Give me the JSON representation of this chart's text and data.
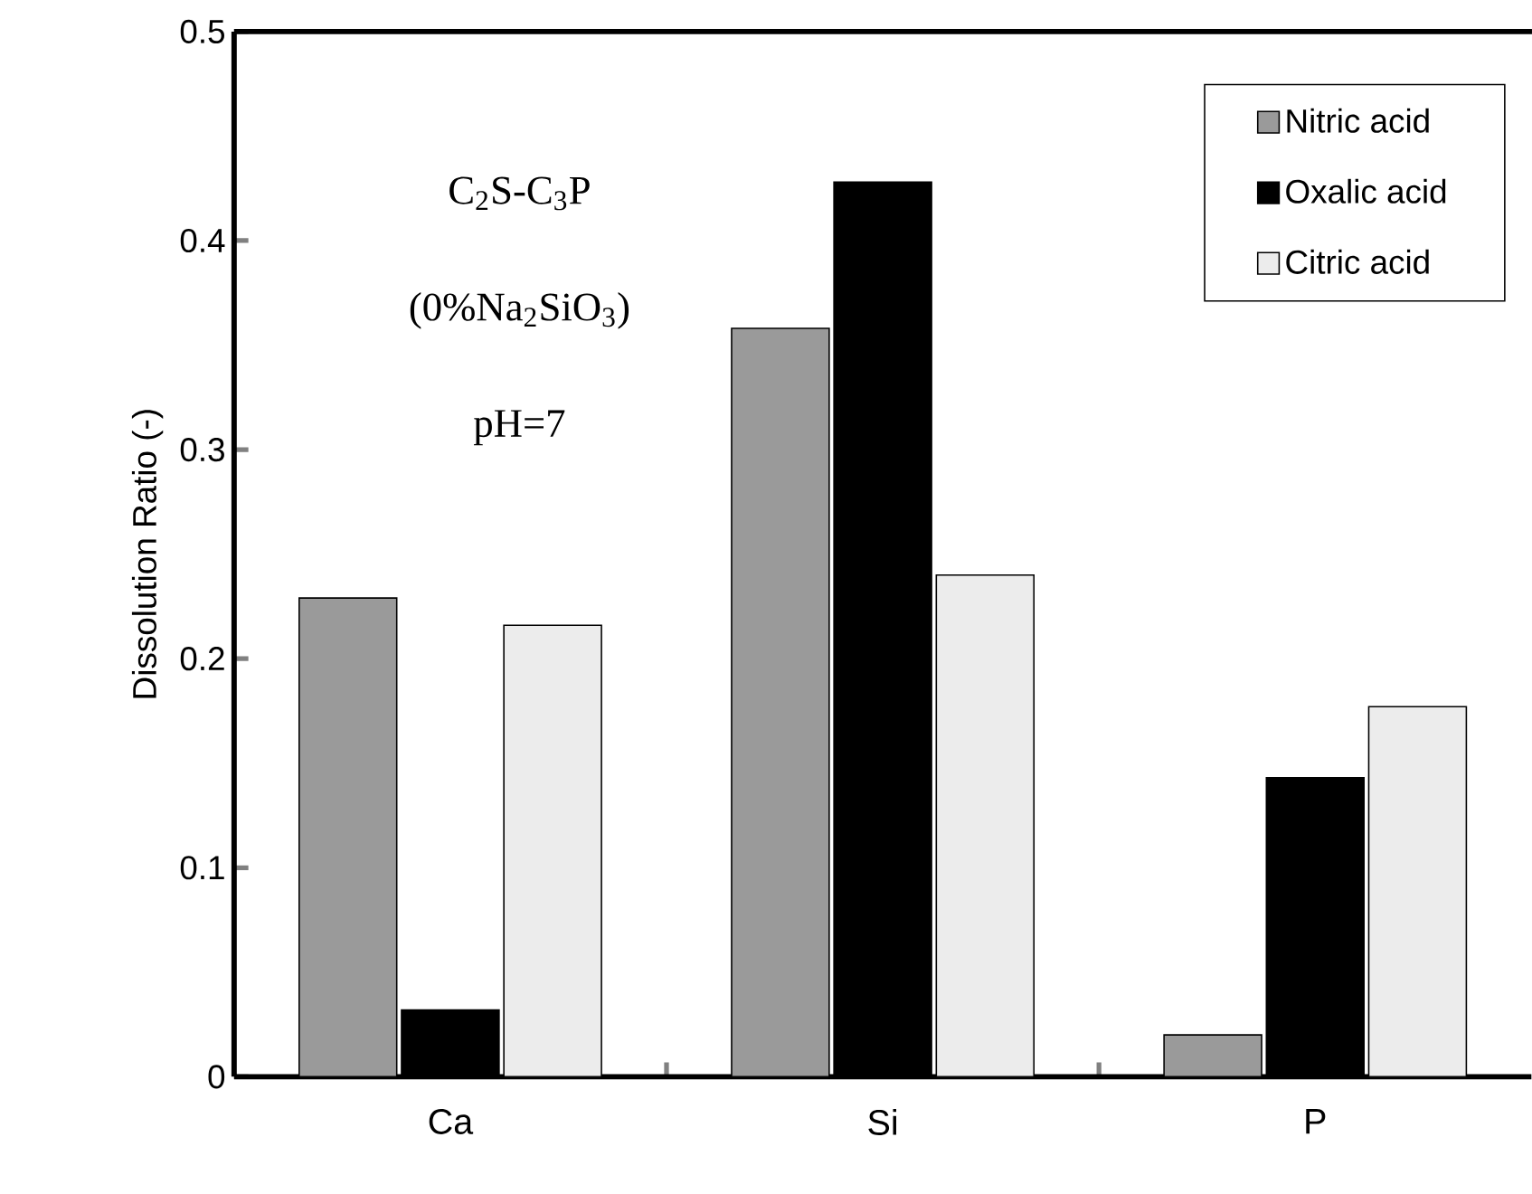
{
  "chart_data": {
    "type": "bar",
    "ylabel": "Dissolution Ratio (-)",
    "categories": [
      "Ca",
      "Si",
      "P"
    ],
    "series": [
      {
        "name": "Nitric acid",
        "color": "#9a9a9a",
        "values": [
          0.229,
          0.358,
          0.02
        ]
      },
      {
        "name": "Oxalic acid",
        "color": "#000000",
        "values": [
          0.032,
          0.428,
          0.143
        ]
      },
      {
        "name": "Citric acid",
        "color": "#ececec",
        "values": [
          0.216,
          0.24,
          0.177
        ]
      }
    ],
    "ylim": [
      0,
      0.5
    ],
    "yticks": [
      0,
      0.1,
      0.2,
      0.3,
      0.4,
      0.5
    ],
    "legend": "top right",
    "grid": false,
    "annotations": [
      "C$_{2}$S-C$_{3}$P",
      "(0%Na$_{2}$SiO$_{3}$)",
      "pH=7"
    ]
  }
}
